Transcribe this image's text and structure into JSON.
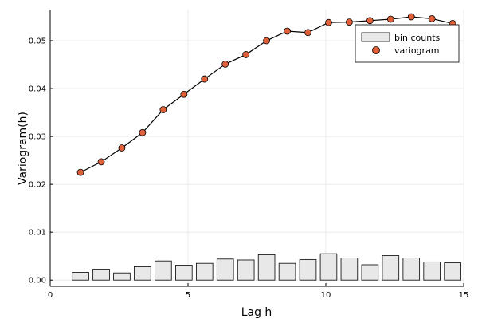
{
  "chart_data": {
    "type": "bar+scatter-line",
    "title": "",
    "xlabel": "Lag h",
    "ylabel": "Variogram(h)",
    "xlim": [
      0,
      15
    ],
    "ylim": [
      -0.0013,
      0.0565
    ],
    "xticks": [
      0,
      5,
      10,
      15
    ],
    "xtick_labels": [
      "0",
      "5",
      "10",
      "15"
    ],
    "yticks": [
      0,
      0.01,
      0.02,
      0.03,
      0.04,
      0.05
    ],
    "ytick_labels": [
      "0.00",
      "0.01",
      "0.02",
      "0.03",
      "0.04",
      "0.05"
    ],
    "grid": true,
    "legend_position": "top-right",
    "bar_width": 0.6,
    "bar_color": "#e8e8e8",
    "point_color": "#e0603a",
    "line_color": "#000000",
    "series": [
      {
        "name": "bin counts",
        "type": "bar",
        "x": [
          1.1,
          1.85,
          2.6,
          3.35,
          4.1,
          4.85,
          5.6,
          6.35,
          7.1,
          7.85,
          8.6,
          9.35,
          10.1,
          10.85,
          11.6,
          12.35,
          13.1,
          13.85,
          14.6
        ],
        "values": [
          0.0016,
          0.0023,
          0.0015,
          0.0028,
          0.004,
          0.0031,
          0.0035,
          0.0044,
          0.0042,
          0.0053,
          0.0035,
          0.0043,
          0.0055,
          0.0046,
          0.0032,
          0.0051,
          0.0046,
          0.0038,
          0.0036
        ]
      },
      {
        "name": "variogram",
        "type": "scatter-line",
        "x": [
          1.1,
          1.85,
          2.6,
          3.35,
          4.1,
          4.85,
          5.6,
          6.35,
          7.1,
          7.85,
          8.6,
          9.35,
          10.1,
          10.85,
          11.6,
          12.35,
          13.1,
          13.85,
          14.6
        ],
        "values": [
          0.0225,
          0.0247,
          0.0276,
          0.0308,
          0.0356,
          0.0388,
          0.042,
          0.0451,
          0.0471,
          0.05,
          0.052,
          0.0517,
          0.0538,
          0.0539,
          0.0542,
          0.0545,
          0.055,
          0.0546,
          0.0536
        ]
      }
    ]
  }
}
